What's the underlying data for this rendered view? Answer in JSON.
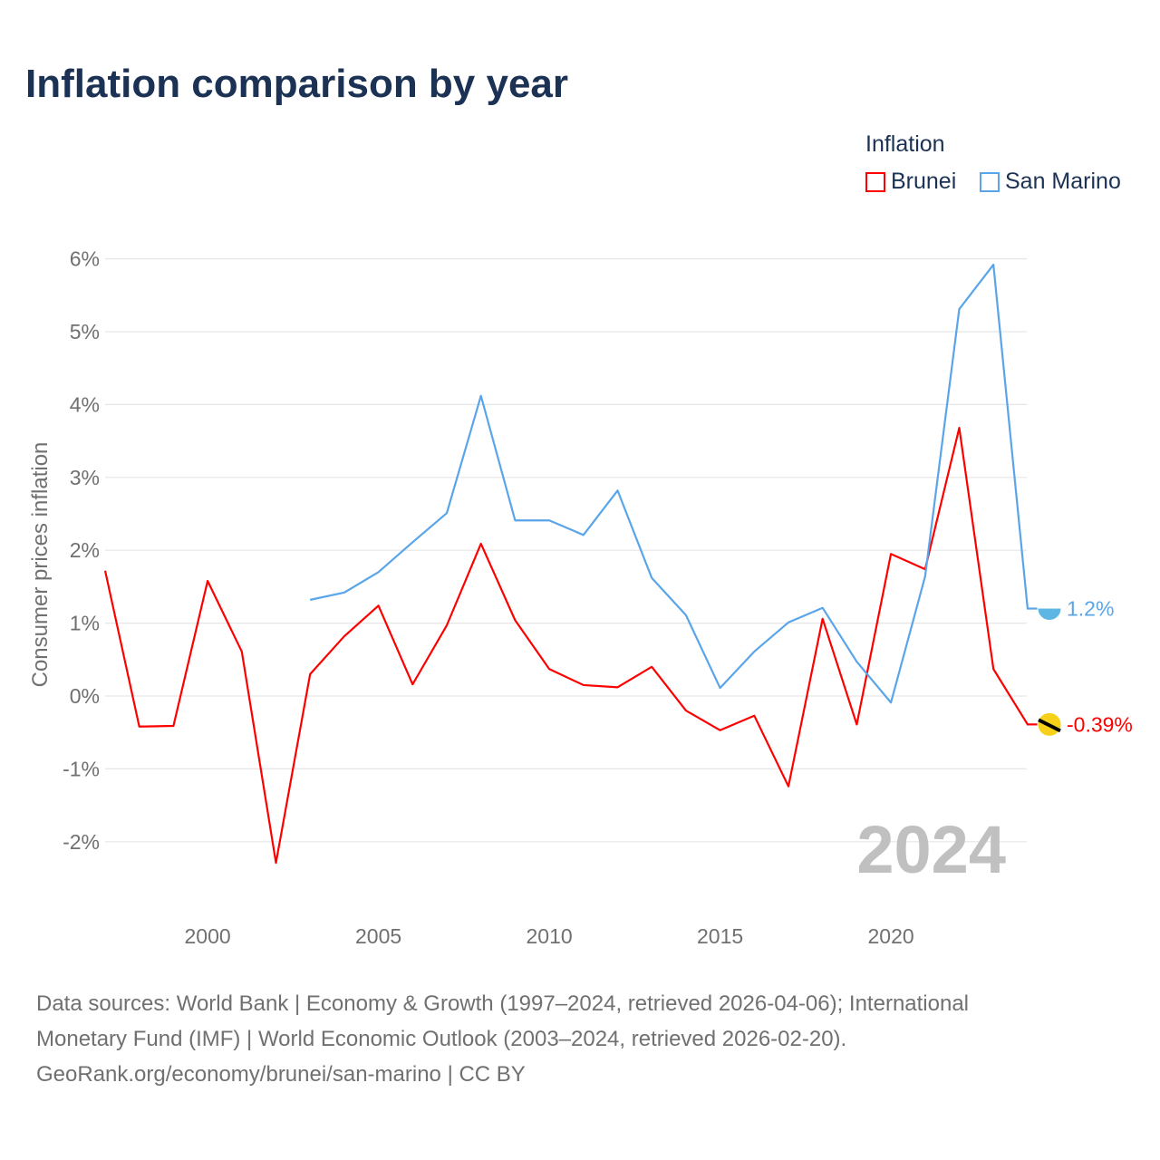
{
  "title": "Inflation comparison by year",
  "legend": {
    "title": "Inflation",
    "items": [
      {
        "name": "Brunei",
        "color": "#ff0000"
      },
      {
        "name": "San Marino",
        "color": "#5aa5ea"
      }
    ]
  },
  "year_watermark": "2024",
  "footer": {
    "line1": "Data sources: World Bank | Economy & Growth (1997–2024, retrieved 2026-04-06); International",
    "line2": "Monetary Fund (IMF) | World Economic Outlook (2003–2024, retrieved 2026-02-20).",
    "line3": "GeoRank.org/economy/brunei/san-marino | CC BY"
  },
  "chart_data": {
    "type": "line",
    "title": "Inflation comparison by year",
    "xlabel": "",
    "ylabel": "Consumer prices inflation",
    "xlim": [
      1997,
      2024
    ],
    "ylim": [
      -3,
      6
    ],
    "xticks": [
      "2000",
      "2005",
      "2010",
      "2015",
      "2020"
    ],
    "yticks": [
      "6%",
      "5%",
      "4%",
      "3%",
      "2%",
      "1%",
      "0%",
      "-1%",
      "-2%"
    ],
    "grid": true,
    "legend_placement": "top-right",
    "series": [
      {
        "name": "Brunei",
        "color": "#ff0000",
        "end_label": "-0.39%",
        "x": [
          1997,
          1998,
          1999,
          2000,
          2001,
          2002,
          2003,
          2004,
          2005,
          2006,
          2007,
          2008,
          2009,
          2010,
          2011,
          2012,
          2013,
          2014,
          2015,
          2016,
          2017,
          2018,
          2019,
          2020,
          2021,
          2022,
          2023,
          2024
        ],
        "values": [
          1.72,
          -0.42,
          -0.41,
          1.58,
          0.61,
          -2.29,
          0.3,
          0.82,
          1.24,
          0.16,
          0.97,
          2.09,
          1.04,
          0.37,
          0.15,
          0.12,
          0.4,
          -0.2,
          -0.47,
          -0.27,
          -1.24,
          1.06,
          -0.39,
          1.95,
          1.74,
          3.68,
          0.37,
          -0.39
        ]
      },
      {
        "name": "San Marino",
        "color": "#5aa5ea",
        "end_label": "1.2%",
        "x": [
          2003,
          2004,
          2005,
          2006,
          2007,
          2008,
          2009,
          2010,
          2011,
          2012,
          2013,
          2014,
          2015,
          2016,
          2017,
          2018,
          2019,
          2020,
          2021,
          2022,
          2023,
          2024
        ],
        "values": [
          1.32,
          1.42,
          1.7,
          2.11,
          2.51,
          4.12,
          2.41,
          2.41,
          2.21,
          2.82,
          1.62,
          1.11,
          0.11,
          0.61,
          1.01,
          1.21,
          0.47,
          -0.09,
          1.64,
          5.31,
          5.92,
          1.2
        ]
      }
    ]
  }
}
